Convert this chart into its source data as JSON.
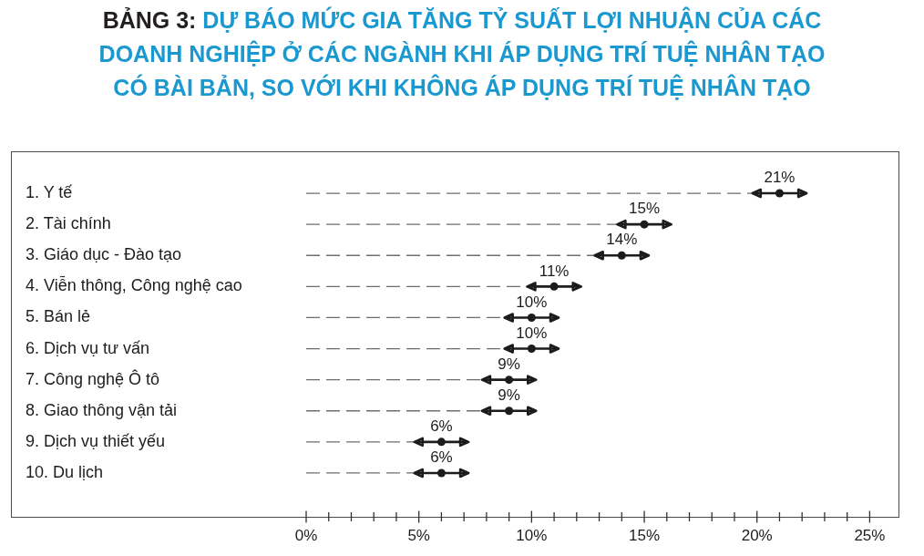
{
  "chart_data": {
    "type": "lollipop",
    "orientation": "horizontal",
    "title": "BẢNG 3: DỰ BÁO MỨC GIA TĂNG TỶ SUẤT LỢI NHUẬN CỦA CÁC DOANH NGHIỆP Ở CÁC NGÀNH KHI ÁP DỤNG TRÍ TUỆ NHÂN TẠO CÓ BÀI BẢN, SO VỚI KHI KHÔNG ÁP DỤNG TRÍ TUỆ NHÂN TẠO",
    "categories": [
      "1. Y tế",
      "2. Tài chính",
      "3. Giáo dục - Đào tạo",
      "4. Viễn thông, Công nghệ cao",
      "5. Bán lẻ",
      "6. Dịch vụ tư vấn",
      "7. Công nghệ Ô tô",
      "8. Giao thông vận tải",
      "9. Dịch vụ thiết yếu",
      "10. Du lịch"
    ],
    "values": [
      21,
      15,
      14,
      11,
      10,
      10,
      9,
      9,
      6,
      6
    ],
    "errors": [
      1.2,
      1.2,
      1.2,
      1.2,
      1.2,
      1.2,
      1.2,
      1.2,
      1.2,
      1.2
    ],
    "value_labels": [
      "21%",
      "15%",
      "14%",
      "11%",
      "10%",
      "10%",
      "9%",
      "9%",
      "6%",
      "6%"
    ],
    "color": "#1c1c1c",
    "xlim": [
      0,
      26.3
    ],
    "xticks": [
      {
        "value": 0,
        "label": "0%"
      },
      {
        "value": 1,
        "label": null
      },
      {
        "value": 2,
        "label": null
      },
      {
        "value": 3,
        "label": null
      },
      {
        "value": 4,
        "label": null
      },
      {
        "value": 5,
        "label": "5%"
      },
      {
        "value": 6,
        "label": null
      },
      {
        "value": 7,
        "label": null
      },
      {
        "value": 8,
        "label": null
      },
      {
        "value": 9,
        "label": null
      },
      {
        "value": 10,
        "label": "10%"
      },
      {
        "value": 11,
        "label": null
      },
      {
        "value": 12,
        "label": null
      },
      {
        "value": 13,
        "label": null
      },
      {
        "value": 14,
        "label": null
      },
      {
        "value": 15,
        "label": "15%"
      },
      {
        "value": 16,
        "label": null
      },
      {
        "value": 17,
        "label": null
      },
      {
        "value": 18,
        "label": null
      },
      {
        "value": 19,
        "label": null
      },
      {
        "value": 20,
        "label": "20%"
      },
      {
        "value": 21,
        "label": null
      },
      {
        "value": 22,
        "label": null
      },
      {
        "value": 23,
        "label": null
      },
      {
        "value": 24,
        "label": null
      },
      {
        "value": 25,
        "label": "25%"
      }
    ],
    "marker": "circle",
    "line_style": "dashed"
  }
}
